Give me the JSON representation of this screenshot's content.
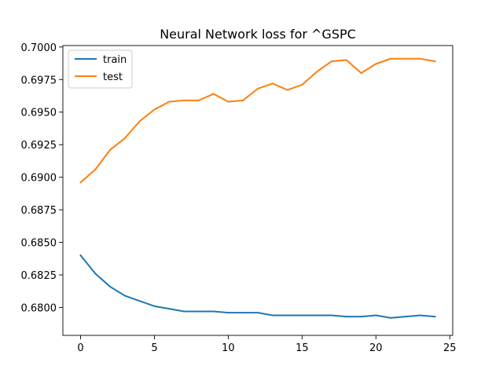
{
  "chart_data": {
    "type": "line",
    "title": "Neural Network loss for ^GSPC",
    "xlabel": "",
    "ylabel": "",
    "xlim": [
      -1.2,
      25.2
    ],
    "ylim": [
      0.67786,
      0.70011
    ],
    "xticks": [
      0,
      5,
      10,
      15,
      20,
      25
    ],
    "xtick_labels": [
      "0",
      "5",
      "10",
      "15",
      "20",
      "25"
    ],
    "yticks": [
      0.68,
      0.6825,
      0.685,
      0.6875,
      0.69,
      0.6925,
      0.695,
      0.6975,
      0.7
    ],
    "ytick_labels": [
      "0.6800",
      "0.6825",
      "0.6850",
      "0.6875",
      "0.6900",
      "0.6925",
      "0.6950",
      "0.6975",
      "0.7000"
    ],
    "grid": false,
    "legend_position": "top-left",
    "x": [
      0,
      1,
      2,
      3,
      4,
      5,
      6,
      7,
      8,
      9,
      10,
      11,
      12,
      13,
      14,
      15,
      16,
      17,
      18,
      19,
      20,
      21,
      22,
      23,
      24
    ],
    "series": [
      {
        "name": "train",
        "color": "#1f77b4",
        "values": [
          0.684,
          0.6826,
          0.6816,
          0.6809,
          0.6805,
          0.6801,
          0.6799,
          0.6797,
          0.6797,
          0.6797,
          0.6796,
          0.6796,
          0.6796,
          0.6794,
          0.6794,
          0.6794,
          0.6794,
          0.6794,
          0.6793,
          0.6793,
          0.6794,
          0.6792,
          0.6793,
          0.6794,
          0.6793
        ]
      },
      {
        "name": "test",
        "color": "#ff7f0e",
        "values": [
          0.6896,
          0.6906,
          0.6921,
          0.693,
          0.6943,
          0.6952,
          0.6958,
          0.6959,
          0.6959,
          0.6964,
          0.6958,
          0.6959,
          0.6968,
          0.6972,
          0.6967,
          0.6971,
          0.6981,
          0.6989,
          0.699,
          0.698,
          0.6987,
          0.6991,
          0.6991,
          0.6991,
          0.6989
        ]
      }
    ]
  }
}
